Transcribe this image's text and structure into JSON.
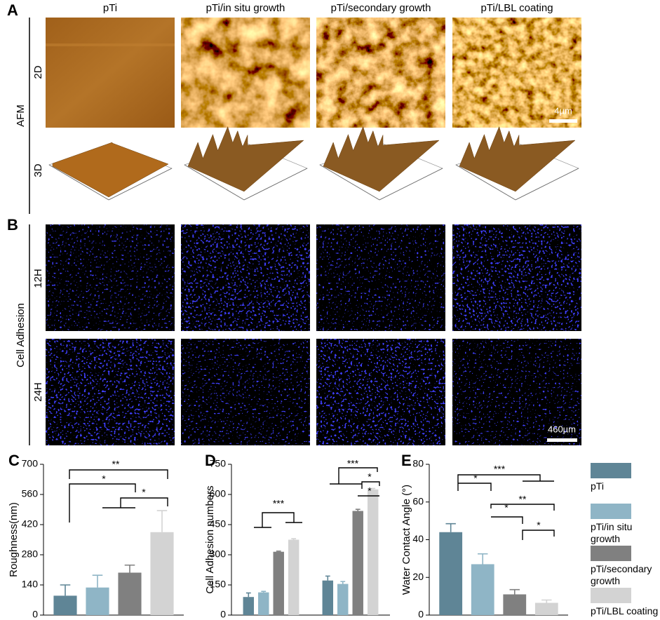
{
  "figure": {
    "panel_a": "A",
    "panel_b": "B",
    "columns": [
      "pTi",
      "pTi/in situ growth",
      "pTi/secondary growth",
      "pTi/LBL coating"
    ],
    "afm_label": "AFM",
    "afm_rows": [
      "2D",
      "3D"
    ],
    "afm_scale": "4µm",
    "adhesion_label": "Cell Adhesion",
    "adhesion_rows": [
      "12H",
      "24H"
    ],
    "adhesion_scale": "460µm"
  },
  "chart_data": [
    {
      "type": "bar",
      "panel": "C",
      "ylabel": "Roughness(nm)",
      "categories": [
        null
      ],
      "ylim": [
        0,
        700
      ],
      "yticks": [
        0,
        140,
        280,
        420,
        560,
        700
      ],
      "series": [
        {
          "color": "#5f8596",
          "values": [
            90
          ],
          "errors": [
            50
          ]
        },
        {
          "color": "#8fb5c6",
          "values": [
            128
          ],
          "errors": [
            57
          ]
        },
        {
          "color": "#808080",
          "values": [
            197
          ],
          "errors": [
            35
          ]
        },
        {
          "color": "#d3d3d3",
          "values": [
            385
          ],
          "errors": [
            100
          ]
        }
      ],
      "annotations": [
        "**",
        "*",
        "*"
      ]
    },
    {
      "type": "bar",
      "panel": "D",
      "ylabel": "Cell Adhesion numbers",
      "categories": [
        null,
        null
      ],
      "ylim": [
        0,
        750
      ],
      "yticks": [
        0,
        150,
        300,
        450,
        600,
        750
      ],
      "series": [
        {
          "color": "#5f8596",
          "values": [
            90,
            172
          ],
          "errors": [
            20,
            22
          ]
        },
        {
          "color": "#8fb5c6",
          "values": [
            113,
            155
          ],
          "errors": [
            5,
            12
          ]
        },
        {
          "color": "#808080",
          "values": [
            315,
            518
          ],
          "errors": [
            3,
            8
          ]
        },
        {
          "color": "#d3d3d3",
          "values": [
            375,
            625
          ],
          "errors": [
            5,
            5
          ]
        }
      ],
      "annotations": [
        "***",
        "***",
        "*",
        "*"
      ]
    },
    {
      "type": "bar",
      "panel": "E",
      "ylabel": "Water Contact Angle (°)",
      "categories": [
        null
      ],
      "ylim": [
        0,
        80
      ],
      "yticks": [
        0,
        20,
        40,
        60,
        80
      ],
      "series": [
        {
          "name": "pTi",
          "color": "#5f8596",
          "values": [
            44
          ],
          "errors": [
            4.5
          ]
        },
        {
          "name": "pTi/in situ growth",
          "color": "#8fb5c6",
          "values": [
            27
          ],
          "errors": [
            5.5
          ]
        },
        {
          "name": "pTi/secondary growth",
          "color": "#808080",
          "values": [
            11
          ],
          "errors": [
            2.5
          ]
        },
        {
          "name": "pTi/LBL coating",
          "color": "#d3d3d3",
          "values": [
            6.5
          ],
          "errors": [
            1.5
          ]
        }
      ],
      "annotations": [
        "***",
        "*",
        "**",
        "*",
        "*"
      ]
    }
  ]
}
